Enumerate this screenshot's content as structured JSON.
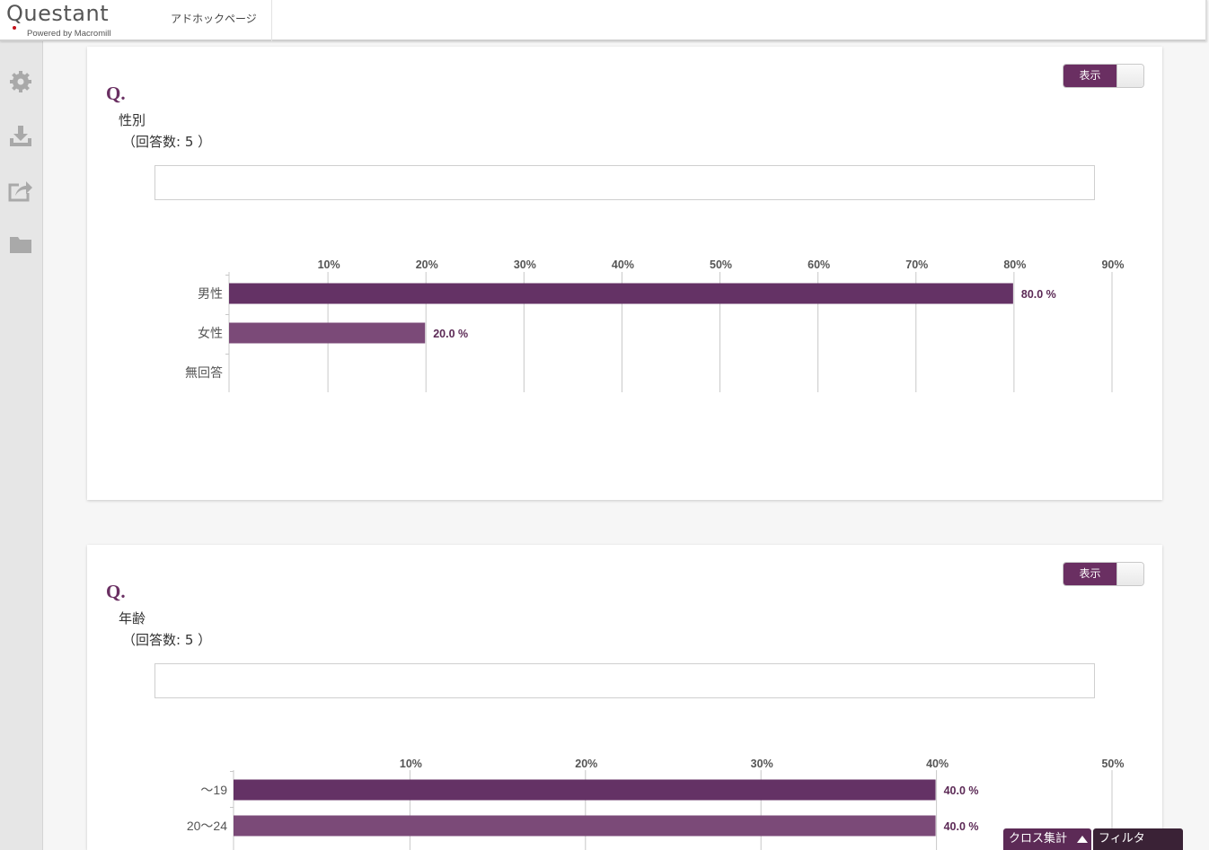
{
  "header": {
    "logo_text": "Questant",
    "logo_sub": "Powered by Macromill",
    "tab_label": "アドホックページ"
  },
  "sidebar": {
    "items": [
      {
        "icon": "gear-icon"
      },
      {
        "icon": "download-icon"
      },
      {
        "icon": "share-icon"
      },
      {
        "icon": "folder-icon"
      }
    ]
  },
  "cards": [
    {
      "toggle_label": "表示",
      "q_label": "Q.",
      "question": "性別",
      "count": "（回答数: 5 ）"
    },
    {
      "toggle_label": "表示",
      "q_label": "Q.",
      "question": "年齢",
      "count": "（回答数: 5 ）"
    }
  ],
  "chart_data": [
    {
      "type": "bar",
      "orientation": "horizontal",
      "categories": [
        "男性",
        "女性",
        "無回答"
      ],
      "values": [
        80.0,
        20.0,
        0
      ],
      "value_labels": [
        "80.0 %",
        "20.0 %",
        ""
      ],
      "xlim": [
        0,
        90
      ],
      "ticks": [
        "10%",
        "20%",
        "30%",
        "40%",
        "50%",
        "60%",
        "70%",
        "80%",
        "90%"
      ],
      "colors": [
        "#643265",
        "#7b4a78",
        "#7b4a78"
      ],
      "grid": true
    },
    {
      "type": "bar",
      "orientation": "horizontal",
      "categories": [
        "～19",
        "20～24"
      ],
      "values": [
        40.0,
        40.0
      ],
      "value_labels": [
        "40.0 %",
        "40.0 %"
      ],
      "xlim": [
        0,
        50
      ],
      "ticks": [
        "10%",
        "20%",
        "30%",
        "40%",
        "50%"
      ],
      "colors": [
        "#643265",
        "#7b4a78"
      ],
      "grid": true
    }
  ],
  "footer": {
    "cross_label": "クロス集計",
    "filter_label": "フィルタ"
  }
}
